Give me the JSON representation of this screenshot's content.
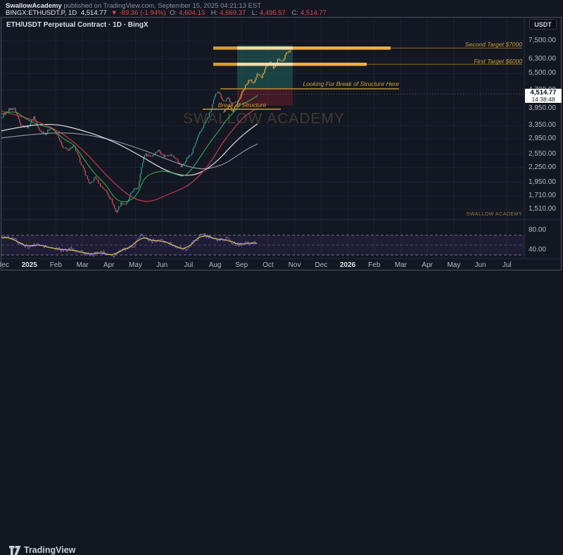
{
  "header": {
    "author": "SwallowAcademy",
    "byline_rest": " published on TradingView.com, September 15, 2025 04:21:13 EST",
    "symbol_interval": "BINGX:ETHUSDT.P, 1D",
    "last_price": "4,514.77",
    "change": "▼ -89.36 (-1.94%)",
    "ohlc": [
      {
        "label": "O:",
        "value": "4,604.13"
      },
      {
        "label": "H:",
        "value": "4,669.37"
      },
      {
        "label": "L:",
        "value": "4,495.57"
      },
      {
        "label": "C:",
        "value": "4,514.77"
      }
    ]
  },
  "chart": {
    "legend_title": "ETH/USDT Perpetual Contract · 1D · BingX",
    "watermark": "SWALLOW ACADEMY",
    "watermark_small": "SWALLOW ACADEMY",
    "currency_button": "USDT"
  },
  "price_scale": {
    "ticks": [
      {
        "label": "7,500.00",
        "value": 7500
      },
      {
        "label": "6,300.00",
        "value": 6300
      },
      {
        "label": "5,500.00",
        "value": 5500
      },
      {
        "label": "4,700.00",
        "value": 4700
      },
      {
        "label": "3,950.00",
        "value": 3950
      },
      {
        "label": "3,350.00",
        "value": 3350
      },
      {
        "label": "2,950.00",
        "value": 2950
      },
      {
        "label": "2,550.00",
        "value": 2550
      },
      {
        "label": "2,250.00",
        "value": 2250
      },
      {
        "label": "1,950.00",
        "value": 1950
      },
      {
        "label": "1,710.00",
        "value": 1710
      },
      {
        "label": "1,510.00",
        "value": 1510
      }
    ],
    "indicator_ticks": [
      {
        "label": "80.00",
        "value": 80
      },
      {
        "label": "40.00",
        "value": 40
      }
    ],
    "last": {
      "price": "4,514.77",
      "countdown": "14:38:48",
      "value": 4514.77
    }
  },
  "time_scale": {
    "labels": [
      {
        "t": "Dec",
        "bold": false
      },
      {
        "t": "2025",
        "bold": true
      },
      {
        "t": "Feb",
        "bold": false
      },
      {
        "t": "Mar",
        "bold": false
      },
      {
        "t": "Apr",
        "bold": false
      },
      {
        "t": "May",
        "bold": false
      },
      {
        "t": "Jun",
        "bold": false
      },
      {
        "t": "Jul",
        "bold": false
      },
      {
        "t": "Aug",
        "bold": false
      },
      {
        "t": "Sep",
        "bold": false
      },
      {
        "t": "Oct",
        "bold": false
      },
      {
        "t": "Nov",
        "bold": false
      },
      {
        "t": "Dec",
        "bold": false
      },
      {
        "t": "2026",
        "bold": true
      },
      {
        "t": "Feb",
        "bold": false
      },
      {
        "t": "Mar",
        "bold": false
      },
      {
        "t": "Apr",
        "bold": false
      },
      {
        "t": "May",
        "bold": false
      },
      {
        "t": "Jun",
        "bold": false
      },
      {
        "t": "Jul",
        "bold": false
      }
    ]
  },
  "annotations": {
    "second_target": {
      "label": "Second Target $7000",
      "price": 7000
    },
    "first_target": {
      "label": "First Target $6000",
      "price": 6000
    },
    "lfbos": {
      "label": "Looking For Break of Structure Here",
      "price": 4750
    },
    "bos": {
      "label": "Break of Structure",
      "price": 3910
    },
    "teal_zone": {
      "price_top": 7200,
      "price_bottom": 4750
    },
    "red_zone": {
      "price_top": 4750,
      "price_bottom": 4050
    }
  },
  "footer": {
    "brand": "TradingView"
  },
  "chart_data": {
    "type": "candlestick",
    "symbol": "ETH/USDT Perpetual Contract",
    "interval": "1D",
    "exchange": "BingX",
    "scale": "log",
    "visible_price_range": [
      1380,
      7700
    ],
    "visible_time_range": [
      "Dec 2024",
      "Jul 2026"
    ],
    "price_keypoints": [
      [
        2,
        3600
      ],
      [
        12,
        3900
      ],
      [
        20,
        3950
      ],
      [
        30,
        3350
      ],
      [
        40,
        3300
      ],
      [
        48,
        3650
      ],
      [
        55,
        3200
      ],
      [
        65,
        3100
      ],
      [
        72,
        3300
      ],
      [
        80,
        3100
      ],
      [
        88,
        2750
      ],
      [
        95,
        2650
      ],
      [
        105,
        2750
      ],
      [
        112,
        2450
      ],
      [
        120,
        2150
      ],
      [
        128,
        1900
      ],
      [
        135,
        2050
      ],
      [
        142,
        1900
      ],
      [
        150,
        1800
      ],
      [
        158,
        1650
      ],
      [
        165,
        1460
      ],
      [
        172,
        1600
      ],
      [
        180,
        1580
      ],
      [
        188,
        1800
      ],
      [
        196,
        1850
      ],
      [
        205,
        2550
      ],
      [
        215,
        2500
      ],
      [
        225,
        2650
      ],
      [
        233,
        2500
      ],
      [
        240,
        2550
      ],
      [
        250,
        2450
      ],
      [
        258,
        2250
      ],
      [
        265,
        2450
      ],
      [
        272,
        2550
      ],
      [
        280,
        2950
      ],
      [
        288,
        3300
      ],
      [
        295,
        3600
      ],
      [
        300,
        3900
      ],
      [
        305,
        4400
      ],
      [
        310,
        4700
      ],
      [
        314,
        4400
      ],
      [
        318,
        4200
      ],
      [
        324,
        4350
      ],
      [
        330,
        4100
      ],
      [
        337,
        4300
      ]
    ],
    "projection_keypoints": [
      [
        318,
        3800
      ],
      [
        325,
        4000
      ],
      [
        331,
        3850
      ],
      [
        337,
        4150
      ],
      [
        343,
        4500
      ],
      [
        349,
        4900
      ],
      [
        355,
        5200
      ],
      [
        360,
        5000
      ],
      [
        366,
        5500
      ],
      [
        372,
        5300
      ],
      [
        378,
        5900
      ],
      [
        384,
        6100
      ],
      [
        389,
        5800
      ],
      [
        395,
        6300
      ],
      [
        401,
        6100
      ],
      [
        406,
        6600
      ],
      [
        411,
        6900
      ],
      [
        414,
        6750
      ]
    ],
    "ma_red": [
      [
        2,
        3835
      ],
      [
        30,
        3660
      ],
      [
        60,
        3424
      ],
      [
        90,
        3101
      ],
      [
        120,
        2624
      ],
      [
        150,
        2100
      ],
      [
        175,
        1789
      ],
      [
        195,
        1640
      ],
      [
        215,
        1618
      ],
      [
        235,
        1719
      ],
      [
        255,
        1813
      ],
      [
        270,
        1913
      ],
      [
        285,
        2100
      ],
      [
        300,
        2373
      ],
      [
        315,
        2805
      ],
      [
        330,
        3206
      ],
      [
        345,
        3594
      ],
      [
        355,
        3793
      ],
      [
        366,
        3948
      ]
    ],
    "ma_white": [
      [
        2,
        3184
      ],
      [
        40,
        3360
      ],
      [
        80,
        3405
      ],
      [
        120,
        3184
      ],
      [
        160,
        2897
      ],
      [
        200,
        2506
      ],
      [
        230,
        2221
      ],
      [
        250,
        2105
      ],
      [
        265,
        2077
      ],
      [
        280,
        2105
      ],
      [
        295,
        2221
      ],
      [
        310,
        2408
      ],
      [
        325,
        2682
      ],
      [
        340,
        2975
      ],
      [
        355,
        3227
      ],
      [
        366,
        3405
      ]
    ],
    "ma_gray": [
      [
        2,
        2975
      ],
      [
        50,
        3096
      ],
      [
        100,
        3139
      ],
      [
        150,
        2975
      ],
      [
        200,
        2682
      ],
      [
        240,
        2408
      ],
      [
        270,
        2251
      ],
      [
        290,
        2206
      ],
      [
        305,
        2251
      ],
      [
        320,
        2330
      ],
      [
        335,
        2490
      ],
      [
        350,
        2665
      ],
      [
        366,
        2812
      ]
    ],
    "ema_green": [
      [
        2,
        3734
      ],
      [
        20,
        3888
      ],
      [
        35,
        3592
      ],
      [
        55,
        3360
      ],
      [
        75,
        3271
      ],
      [
        90,
        2936
      ],
      [
        105,
        2805
      ],
      [
        120,
        2408
      ],
      [
        135,
        2105
      ],
      [
        150,
        1915
      ],
      [
        165,
        1640
      ],
      [
        180,
        1607
      ],
      [
        195,
        1719
      ],
      [
        205,
        2049
      ],
      [
        220,
        2147
      ],
      [
        235,
        2177
      ],
      [
        250,
        2105
      ],
      [
        262,
        2049
      ],
      [
        275,
        2251
      ],
      [
        290,
        2624
      ],
      [
        300,
        2897
      ],
      [
        312,
        3206
      ],
      [
        322,
        3545
      ],
      [
        332,
        3793
      ],
      [
        342,
        4110
      ],
      [
        352,
        4194
      ],
      [
        360,
        4337
      ],
      [
        366,
        4455
      ]
    ],
    "rsi": {
      "keypoints": [
        [
          2,
          65
        ],
        [
          12,
          68
        ],
        [
          22,
          60
        ],
        [
          32,
          50
        ],
        [
          42,
          46
        ],
        [
          52,
          52
        ],
        [
          62,
          48
        ],
        [
          72,
          44
        ],
        [
          82,
          42
        ],
        [
          92,
          38
        ],
        [
          102,
          43
        ],
        [
          112,
          37
        ],
        [
          122,
          33
        ],
        [
          132,
          30
        ],
        [
          142,
          37
        ],
        [
          152,
          34
        ],
        [
          162,
          29
        ],
        [
          172,
          39
        ],
        [
          182,
          45
        ],
        [
          192,
          50
        ],
        [
          200,
          73
        ],
        [
          208,
          64
        ],
        [
          216,
          58
        ],
        [
          226,
          61
        ],
        [
          236,
          55
        ],
        [
          246,
          51
        ],
        [
          256,
          44
        ],
        [
          263,
          40
        ],
        [
          271,
          51
        ],
        [
          280,
          61
        ],
        [
          286,
          74
        ],
        [
          293,
          69
        ],
        [
          301,
          66
        ],
        [
          311,
          59
        ],
        [
          321,
          64
        ],
        [
          331,
          54
        ],
        [
          341,
          50
        ],
        [
          349,
          58
        ],
        [
          356,
          51
        ],
        [
          361,
          55
        ],
        [
          366,
          49
        ]
      ],
      "levels": [
        70,
        50,
        30
      ],
      "axis_ticks": [
        80,
        40
      ]
    }
  },
  "colors": {
    "background": "#131722",
    "grid": "#1c2231",
    "candle_up": "#2e9e8e",
    "candle_down": "#dd4e56",
    "projection_up": "#f3b04a",
    "projection_down": "#d08f26",
    "ma_red": "#c23a4f",
    "ma_white": "#e8eaf0",
    "ma_gray": "#b9bdc9",
    "ema_green": "#35a84f",
    "rsi_purple": "#8e6ad1",
    "rsi_yellow": "#d6c74a",
    "annotation_orange": "#c9962e",
    "teal_zone_fill": "rgba(35,110,100,0.50)",
    "red_zone_fill": "rgba(120,30,45,0.48)",
    "bar_bright": "#f3ae41",
    "bar_pale": "#f3d9a2",
    "bar_left": "#d89a31"
  }
}
